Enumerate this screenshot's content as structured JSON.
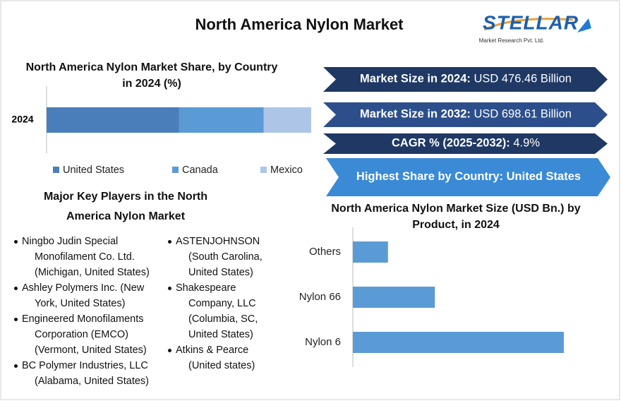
{
  "header": {
    "title": "North America Nylon Market",
    "logo": "STELLAR",
    "logo_tagline": "Market Research Pvt. Ltd."
  },
  "highlights": [
    {
      "label": "Market Size in 2024:",
      "value": "USD 476.46 Billion",
      "color": "#1f3864"
    },
    {
      "label": "Market Size in 2032:",
      "value": "USD 698.61 Billion",
      "color": "#2c4f8c"
    },
    {
      "label": "CAGR % (2025-2032):",
      "value": "4.9%",
      "color": "#1f3864"
    },
    {
      "label": "Highest Share by Country:",
      "value": "United States",
      "color": "#3a8ad6"
    }
  ],
  "key_players": {
    "title": "Major Key Players in the North America Nylon Market",
    "items": [
      "Ningbo Judin Special Monofilament Co. Ltd. (Michigan, United States)",
      "Ashley Polymers Inc. (New York, United States)",
      "Engineered Monofilaments Corporation (EMCO) (Vermont, United States)",
      "BC Polymer Industries, LLC (Alabama, United States)",
      "ASTENJOHNSON (South Carolina, United States)",
      "Shakespeare Company, LLC (Columbia, SC, United States)",
      "Atkins & Pearce (United states)"
    ]
  },
  "chart_data": [
    {
      "type": "stacked_bar",
      "title": "North America Nylon Market Share, by Country in 2024 (%)",
      "categories": [
        "2024"
      ],
      "series": [
        {
          "name": "United States",
          "color": "#4a7ebb",
          "values": [
            50
          ]
        },
        {
          "name": "Canada",
          "color": "#5b9bd5",
          "values": [
            32
          ]
        },
        {
          "name": "Mexico",
          "color": "#adc6e8",
          "values": [
            18
          ]
        }
      ]
    },
    {
      "type": "hbar",
      "title": "North America Nylon Market Size (USD Bn.) by Product, in 2024",
      "categories": [
        "Others",
        "Nylon 66",
        "Nylon 6"
      ],
      "values": [
        51,
        119,
        306
      ],
      "color": "#5b9bd5"
    }
  ]
}
